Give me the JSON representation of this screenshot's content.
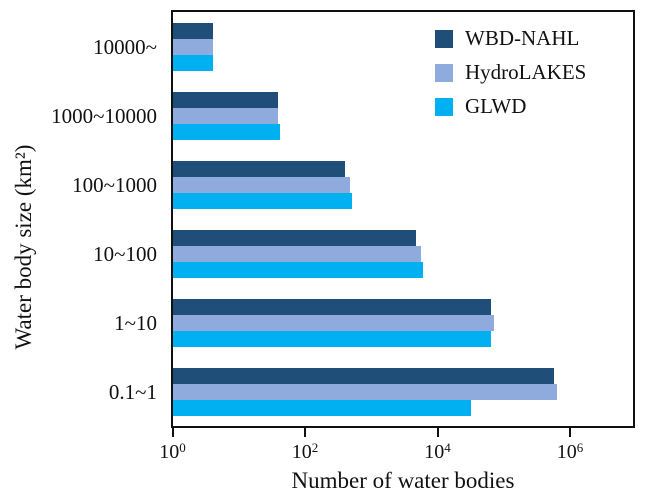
{
  "chart_data": {
    "type": "bar",
    "orientation": "horizontal",
    "title": "",
    "xlabel": "Number of water bodies",
    "ylabel": "Water body size (km²)",
    "x_scale": "log",
    "xlim": [
      1,
      10000000
    ],
    "grid": false,
    "x_ticks": [
      {
        "base": "10",
        "exp": "0"
      },
      {
        "base": "10",
        "exp": "2"
      },
      {
        "base": "10",
        "exp": "4"
      },
      {
        "base": "10",
        "exp": "6"
      }
    ],
    "categories": [
      "10000~",
      "1000~10000",
      "100~1000",
      "10~100",
      "1~10",
      "0.1~1"
    ],
    "series": [
      {
        "name": "WBD-NAHL",
        "color": "#1f4e79",
        "values": [
          4,
          39,
          390,
          4600,
          64000,
          560000
        ]
      },
      {
        "name": "HydroLAKES",
        "color": "#8faadc",
        "values": [
          4,
          38,
          470,
          5500,
          70000,
          620000
        ]
      },
      {
        "name": "GLWD",
        "color": "#00b0f0",
        "values": [
          4,
          41,
          500,
          6000,
          63000,
          32000
        ]
      }
    ],
    "legend": {
      "position": "upper-right",
      "entries": [
        "WBD-NAHL",
        "HydroLAKES",
        "GLWD"
      ]
    }
  }
}
